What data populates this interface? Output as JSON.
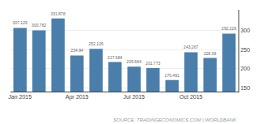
{
  "chart_data": {
    "type": "bar",
    "categories": [
      "Jan 2015",
      null,
      null,
      "Apr 2015",
      null,
      null,
      "Jul 2015",
      null,
      null,
      "Oct 2015",
      null,
      null
    ],
    "values": [
      307.129,
      300.782,
      331.878,
      234.94,
      252.126,
      217.684,
      205.664,
      201.773,
      170.491,
      243.267,
      228.09,
      292.226
    ],
    "color": "#4a7fac",
    "ylim": [
      140,
      355
    ],
    "yticks": [
      150,
      200,
      250,
      300
    ],
    "grid": true,
    "data_labels": true,
    "annotations": [
      "SOURCE: TRADINGECONOMICS.COM | WORLDBANK"
    ]
  }
}
